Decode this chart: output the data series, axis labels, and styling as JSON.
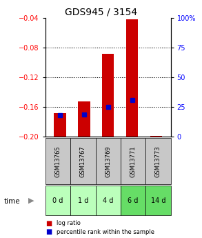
{
  "title": "GDS945 / 3154",
  "categories": [
    "GSM13765",
    "GSM13767",
    "GSM13769",
    "GSM13771",
    "GSM13773"
  ],
  "time_labels": [
    "0 d",
    "1 d",
    "4 d",
    "6 d",
    "14 d"
  ],
  "log_ratios": [
    -0.168,
    -0.152,
    -0.088,
    -0.042,
    -0.199
  ],
  "percentile_ranks": [
    18,
    19,
    25,
    31,
    0
  ],
  "bar_color": "#cc0000",
  "percentile_color": "#0000cc",
  "ylim_left": [
    -0.2,
    -0.04
  ],
  "ylim_right": [
    0,
    100
  ],
  "yticks_left": [
    -0.2,
    -0.16,
    -0.12,
    -0.08,
    -0.04
  ],
  "yticks_right_vals": [
    0,
    25,
    50,
    75,
    100
  ],
  "yticks_right_labels": [
    "0",
    "25",
    "50",
    "75",
    "100%"
  ],
  "grid_yticks": [
    -0.16,
    -0.12,
    -0.08
  ],
  "title_fontsize": 10,
  "tick_fontsize": 7,
  "bar_width": 0.5,
  "time_bg_light": "#bbffbb",
  "time_bg_dark": "#66dd66",
  "time_bg_colors": [
    "#bbffbb",
    "#bbffbb",
    "#bbffbb",
    "#66dd66",
    "#66dd66"
  ],
  "gsm_bg_color": "#c8c8c8",
  "legend_items": [
    "log ratio",
    "percentile rank within the sample"
  ],
  "legend_colors": [
    "#cc0000",
    "#0000cc"
  ],
  "fig_bg": "#ffffff"
}
